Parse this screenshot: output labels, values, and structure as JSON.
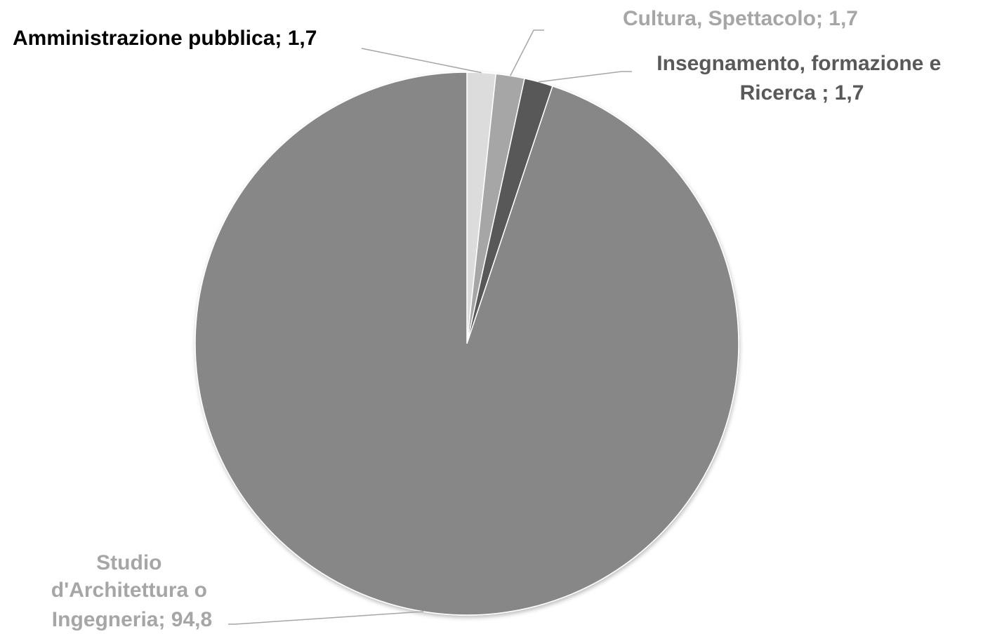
{
  "chart_data": {
    "type": "pie",
    "title": "",
    "slices": [
      {
        "label": "Amministrazione pubblica; 1,7",
        "name": "Amministrazione pubblica",
        "value": 1.7,
        "color": "#dcdcdc",
        "label_color": "#000000"
      },
      {
        "label": "Cultura, Spettacolo; 1,7",
        "name": "Cultura, Spettacolo",
        "value": 1.7,
        "color": "#a6a6a6",
        "label_color": "#a6a6a6"
      },
      {
        "label": "Insegnamento, formazione e Ricerca ; 1,7",
        "name": "Insegnamento, formazione e Ricerca",
        "value": 1.7,
        "color": "#595959",
        "label_color": "#595959"
      },
      {
        "label": "Studio d'Architettura o Ingegneria; 94,8",
        "name": "Studio d'Architettura o Ingegneria",
        "value": 94.8,
        "color": "#878787",
        "label_color": "#a6a6a6"
      }
    ],
    "start": "12 o'clock",
    "direction": "clockwise",
    "legend": "none"
  }
}
